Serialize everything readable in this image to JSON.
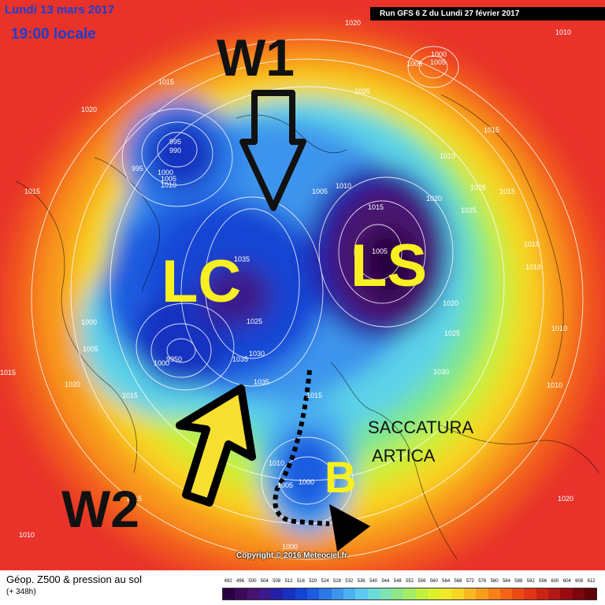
{
  "header": {
    "date": "Lundi 13 mars 2017",
    "time": "19:00 locale",
    "run": "Run GFS 6 Z du Lundi 27 février 2017"
  },
  "copyright": "Copyright © 2016 Meteociel.fr",
  "annotations": {
    "w1": "W1",
    "w2": "W2",
    "lc": "LC",
    "ls": "LS",
    "b": "B",
    "saccatura_line1": "SACCATURA",
    "saccatura_line2": "ARTICA"
  },
  "pressure_labels": {
    "p01": "1020",
    "p02": "1010",
    "p03": "1005",
    "p04": "1015",
    "p05": "1020",
    "p06": "995",
    "p07": "990",
    "p08": "995",
    "p09": "1000",
    "p10": "1005",
    "p11": "1010",
    "p12": "1015",
    "p13": "1025",
    "p14": "1005",
    "p15": "1010",
    "p16": "1015",
    "p17": "1020",
    "p18": "1025",
    "p19": "1005",
    "p20": "1015",
    "p21": "1025",
    "p22": "1035",
    "p23": "1025",
    "p24": "1030",
    "p25": "1035",
    "p26": "1035",
    "p27": "1000",
    "p28": "1005",
    "p29": "9950",
    "p30": "1000",
    "p31": "1020",
    "p32": "1015",
    "p33": "1015",
    "p34": "1010",
    "p35": "1005",
    "p36": "1000",
    "p37": "1000",
    "p38": "1015",
    "p39": "1010",
    "p40": "1010",
    "p41": "1020",
    "p42": "1025",
    "p43": "1030",
    "p44": "1015",
    "p45": "1010",
    "p46": "1015",
    "p47": "1015",
    "p48": "1010",
    "p49": "1000",
    "p50": "1005",
    "p51": "1010",
    "p52": "1020"
  },
  "footer": {
    "title": "Géop. Z500 & pression au sol",
    "subtitle": "(+ 348h)"
  },
  "legend": {
    "values": [
      "492",
      "496",
      "500",
      "504",
      "508",
      "512",
      "516",
      "520",
      "524",
      "528",
      "532",
      "536",
      "540",
      "544",
      "548",
      "552",
      "556",
      "560",
      "564",
      "568",
      "572",
      "576",
      "580",
      "584",
      "588",
      "592",
      "596",
      "600",
      "604",
      "608",
      "612"
    ],
    "colors": [
      "#2a0040",
      "#3c0a5a",
      "#4a1270",
      "#3a1a8c",
      "#2420a8",
      "#1830c0",
      "#1444d4",
      "#1c5ce0",
      "#2c78e8",
      "#3c94ec",
      "#4cb0f0",
      "#5ccaf0",
      "#6cdcd8",
      "#7ce4b0",
      "#8ee888",
      "#a4ec64",
      "#c0f040",
      "#dcf02c",
      "#f0e828",
      "#f8d424",
      "#f8b820",
      "#f89c1c",
      "#f88018",
      "#f46414",
      "#ec4a14",
      "#e03414",
      "#cc2414",
      "#b41814",
      "#980c10",
      "#7c060c",
      "#600408"
    ]
  }
}
